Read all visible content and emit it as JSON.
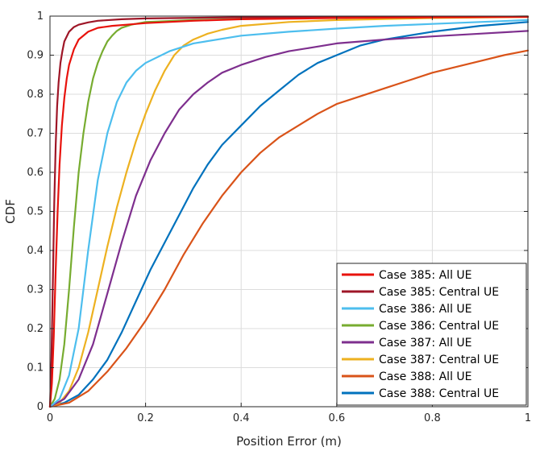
{
  "chart_data": {
    "type": "line",
    "xlabel": "Position Error (m)",
    "ylabel": "CDF",
    "xlim": [
      0,
      1
    ],
    "ylim": [
      0,
      1
    ],
    "xticks": [
      0,
      0.2,
      0.4,
      0.6,
      0.8,
      1
    ],
    "yticks": [
      0,
      0.1,
      0.2,
      0.3,
      0.4,
      0.5,
      0.6,
      0.7,
      0.8,
      0.9,
      1
    ],
    "xtick_labels": [
      "0",
      "0.2",
      "0.4",
      "0.6",
      "0.8",
      "1"
    ],
    "ytick_labels": [
      "0",
      "0.1",
      "0.2",
      "0.3",
      "0.4",
      "0.5",
      "0.6",
      "0.7",
      "0.8",
      "0.9",
      "1"
    ],
    "grid": true,
    "legend_position": "bottom-right",
    "series": [
      {
        "name": "Case 385: All UE",
        "color": "#e8120c",
        "x": [
          0,
          0.004,
          0.008,
          0.012,
          0.016,
          0.02,
          0.025,
          0.03,
          0.035,
          0.04,
          0.05,
          0.06,
          0.08,
          0.1,
          0.13,
          0.16,
          0.2,
          0.3,
          0.4,
          0.6,
          0.8,
          1.0
        ],
        "y": [
          0,
          0.06,
          0.18,
          0.35,
          0.5,
          0.62,
          0.72,
          0.79,
          0.84,
          0.875,
          0.915,
          0.94,
          0.96,
          0.97,
          0.975,
          0.978,
          0.982,
          0.988,
          0.992,
          0.995,
          0.997,
          0.998
        ]
      },
      {
        "name": "Case 385: Central UE",
        "color": "#9e1627",
        "x": [
          0,
          0.003,
          0.006,
          0.009,
          0.012,
          0.015,
          0.018,
          0.022,
          0.026,
          0.03,
          0.04,
          0.05,
          0.06,
          0.08,
          0.1,
          0.15,
          0.2,
          0.4,
          1.0
        ],
        "y": [
          0,
          0.12,
          0.32,
          0.52,
          0.67,
          0.77,
          0.83,
          0.88,
          0.91,
          0.935,
          0.96,
          0.972,
          0.978,
          0.984,
          0.988,
          0.992,
          0.994,
          0.997,
          0.999
        ]
      },
      {
        "name": "Case 386: All UE",
        "color": "#4dbeee",
        "x": [
          0,
          0.02,
          0.04,
          0.06,
          0.08,
          0.1,
          0.12,
          0.14,
          0.16,
          0.18,
          0.2,
          0.25,
          0.3,
          0.4,
          0.5,
          0.6,
          0.7,
          0.8,
          0.9,
          1.0
        ],
        "y": [
          0,
          0.02,
          0.08,
          0.2,
          0.4,
          0.58,
          0.7,
          0.78,
          0.83,
          0.86,
          0.88,
          0.91,
          0.93,
          0.95,
          0.96,
          0.968,
          0.975,
          0.98,
          0.985,
          0.99
        ]
      },
      {
        "name": "Case 386: Central UE",
        "color": "#77ac30",
        "x": [
          0,
          0.01,
          0.02,
          0.03,
          0.04,
          0.05,
          0.06,
          0.07,
          0.08,
          0.09,
          0.1,
          0.11,
          0.12,
          0.13,
          0.14,
          0.15,
          0.17,
          0.2,
          0.3,
          0.5,
          1.0
        ],
        "y": [
          0,
          0.02,
          0.07,
          0.16,
          0.3,
          0.46,
          0.6,
          0.7,
          0.78,
          0.84,
          0.88,
          0.91,
          0.935,
          0.95,
          0.962,
          0.97,
          0.978,
          0.985,
          0.99,
          0.995,
          0.999
        ]
      },
      {
        "name": "Case 387: All UE",
        "color": "#7e2f8e",
        "x": [
          0,
          0.03,
          0.06,
          0.09,
          0.12,
          0.15,
          0.18,
          0.21,
          0.24,
          0.27,
          0.3,
          0.33,
          0.36,
          0.4,
          0.45,
          0.5,
          0.55,
          0.6,
          0.7,
          0.8,
          0.9,
          1.0
        ],
        "y": [
          0,
          0.02,
          0.07,
          0.16,
          0.29,
          0.42,
          0.54,
          0.63,
          0.7,
          0.76,
          0.8,
          0.83,
          0.855,
          0.875,
          0.895,
          0.91,
          0.92,
          0.93,
          0.94,
          0.948,
          0.955,
          0.962
        ]
      },
      {
        "name": "Case 387: Central UE",
        "color": "#edb120",
        "x": [
          0,
          0.02,
          0.04,
          0.06,
          0.08,
          0.1,
          0.12,
          0.14,
          0.16,
          0.18,
          0.2,
          0.22,
          0.24,
          0.26,
          0.28,
          0.3,
          0.33,
          0.36,
          0.4,
          0.5,
          0.6,
          0.8,
          1.0
        ],
        "y": [
          0,
          0.01,
          0.04,
          0.1,
          0.19,
          0.3,
          0.41,
          0.51,
          0.6,
          0.68,
          0.75,
          0.81,
          0.86,
          0.9,
          0.925,
          0.94,
          0.955,
          0.965,
          0.975,
          0.985,
          0.99,
          0.995,
          0.998
        ]
      },
      {
        "name": "Case 388: All UE",
        "color": "#d95319",
        "x": [
          0,
          0.04,
          0.08,
          0.12,
          0.16,
          0.2,
          0.24,
          0.28,
          0.32,
          0.36,
          0.4,
          0.44,
          0.48,
          0.52,
          0.56,
          0.6,
          0.65,
          0.7,
          0.75,
          0.8,
          0.85,
          0.9,
          0.95,
          1.0
        ],
        "y": [
          0,
          0.01,
          0.04,
          0.09,
          0.15,
          0.22,
          0.3,
          0.39,
          0.47,
          0.54,
          0.6,
          0.65,
          0.69,
          0.72,
          0.75,
          0.775,
          0.795,
          0.815,
          0.835,
          0.855,
          0.87,
          0.885,
          0.9,
          0.912
        ]
      },
      {
        "name": "Case 388: Central UE",
        "color": "#0072bd",
        "x": [
          0,
          0.03,
          0.06,
          0.09,
          0.12,
          0.15,
          0.18,
          0.21,
          0.24,
          0.27,
          0.3,
          0.33,
          0.36,
          0.4,
          0.44,
          0.48,
          0.52,
          0.56,
          0.6,
          0.65,
          0.7,
          0.8,
          0.9,
          1.0
        ],
        "y": [
          0,
          0.01,
          0.03,
          0.07,
          0.12,
          0.19,
          0.27,
          0.35,
          0.42,
          0.49,
          0.56,
          0.62,
          0.67,
          0.72,
          0.77,
          0.81,
          0.85,
          0.88,
          0.9,
          0.925,
          0.94,
          0.96,
          0.975,
          0.985
        ]
      }
    ]
  }
}
